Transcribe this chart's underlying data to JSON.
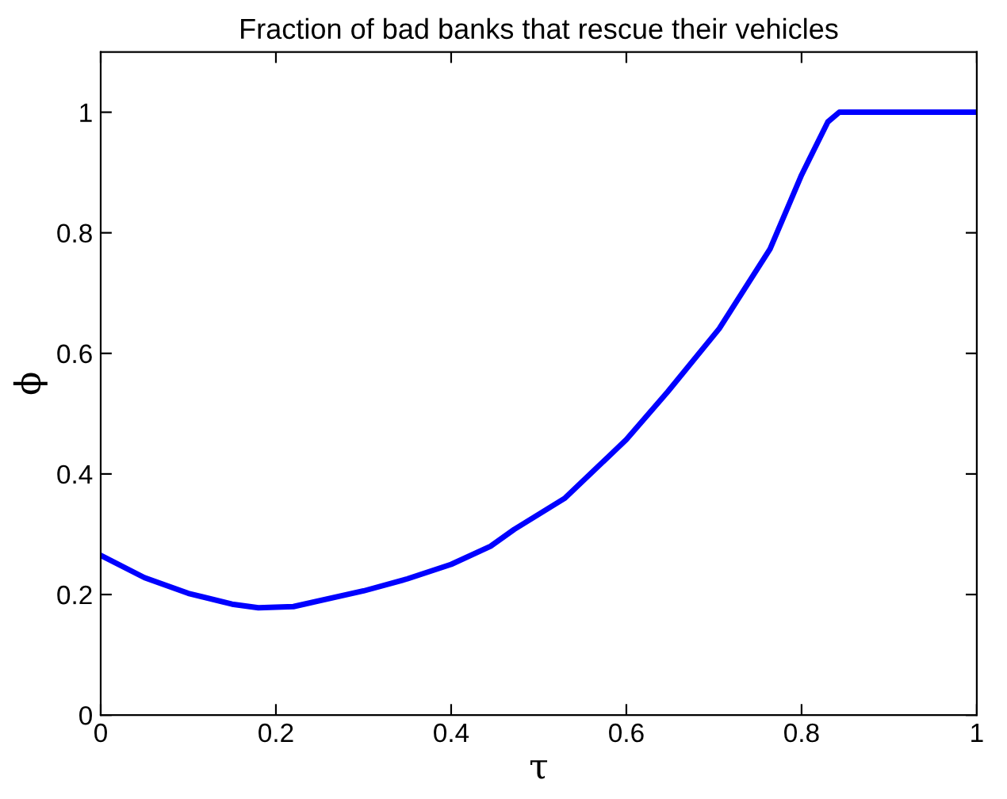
{
  "chart_data": {
    "type": "line",
    "title": "Fraction of bad banks that rescue their vehicles",
    "xlabel": "τ",
    "ylabel": "ϕ",
    "series": [
      {
        "color": "#0000ff",
        "x": [
          0,
          0.05,
          0.1,
          0.15,
          0.18,
          0.22,
          0.3,
          0.35,
          0.4,
          0.445,
          0.472,
          0.53,
          0.6,
          0.647,
          0.706,
          0.764,
          0.8,
          0.83,
          0.843,
          1.0
        ],
        "values": [
          0.265,
          0.228,
          0.202,
          0.184,
          0.178,
          0.18,
          0.206,
          0.226,
          0.25,
          0.28,
          0.308,
          0.36,
          0.457,
          0.536,
          0.641,
          0.773,
          0.896,
          0.984,
          1.0,
          1.0
        ]
      }
    ],
    "xlim": [
      0,
      1
    ],
    "ylim": [
      0,
      1.1
    ],
    "xticks": [
      0,
      0.2,
      0.4,
      0.6,
      0.8,
      1
    ],
    "yticks": [
      0,
      0.2,
      0.4,
      0.6,
      0.8,
      1
    ],
    "grid": false,
    "legend": false,
    "marker": "none",
    "line_style": "solid"
  }
}
